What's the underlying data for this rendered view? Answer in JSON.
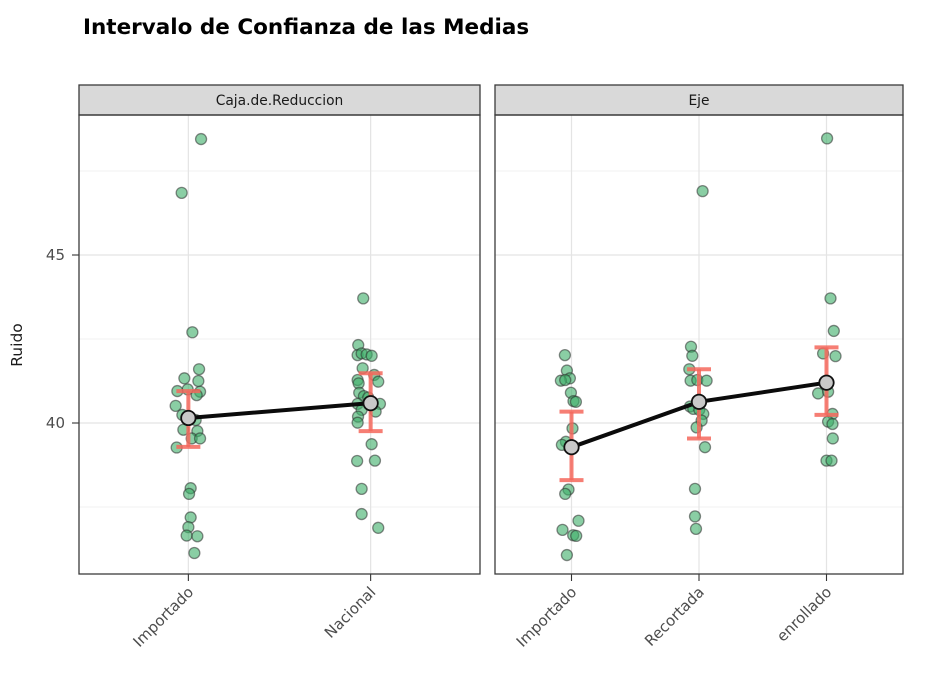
{
  "title": "Intervalo de Confianza de las Medias",
  "chart_data": {
    "type": "scatter",
    "title": "Intervalo de Confianza de las Medias",
    "xlabel": "",
    "ylabel": "Ruido",
    "legend": "none",
    "y_axis": {
      "major_ticks": [
        40,
        45
      ],
      "major_tick_labels": [
        "40",
        "45"
      ],
      "minor_ticks": [
        37.5,
        42.5,
        47.5
      ],
      "domain": [
        35.5,
        49.2
      ],
      "grid": true
    },
    "facets": [
      {
        "label": "Caja.de.Reduccion",
        "groups": [
          {
            "category": "Importado",
            "mean": 40.15,
            "ci_low": 39.29,
            "ci_high": 40.95,
            "points": [
              [
                12.7,
                48.45
              ],
              [
                -6.7,
                46.85
              ],
              [
                4,
                42.7
              ],
              [
                10.7,
                41.6
              ],
              [
                -4,
                41.33
              ],
              [
                10,
                41.25
              ],
              [
                -0.7,
                41.0
              ],
              [
                -11,
                40.95
              ],
              [
                11.7,
                40.93
              ],
              [
                8.3,
                40.83
              ],
              [
                -12.7,
                40.51
              ],
              [
                -6,
                40.24
              ],
              [
                7.3,
                40.09
              ],
              [
                -5,
                39.8
              ],
              [
                9,
                39.76
              ],
              [
                3.3,
                39.54
              ],
              [
                11.7,
                39.54
              ],
              [
                -11.7,
                39.27
              ],
              [
                2.3,
                38.06
              ],
              [
                0.7,
                37.89
              ],
              [
                2.3,
                37.19
              ],
              [
                0,
                36.9
              ],
              [
                -1.7,
                36.65
              ],
              [
                9,
                36.63
              ],
              [
                6,
                36.13
              ]
            ]
          },
          {
            "category": "Nacional",
            "mean": 40.59,
            "ci_low": 39.76,
            "ci_high": 41.48,
            "points": [
              [
                -7.4,
                43.71
              ],
              [
                -12.4,
                42.32
              ],
              [
                -13,
                42.02
              ],
              [
                -9,
                42.07
              ],
              [
                -4,
                42.04
              ],
              [
                1,
                42.0
              ],
              [
                -8,
                41.63
              ],
              [
                3.6,
                41.43
              ],
              [
                -13,
                41.28
              ],
              [
                7.6,
                41.23
              ],
              [
                -12,
                41.18
              ],
              [
                -11.4,
                40.9
              ],
              [
                -6.7,
                40.8
              ],
              [
                -2.4,
                40.76
              ],
              [
                -13,
                40.57
              ],
              [
                9.3,
                40.57
              ],
              [
                -9,
                40.39
              ],
              [
                5,
                40.34
              ],
              [
                -12.6,
                40.19
              ],
              [
                -13,
                40.01
              ],
              [
                1,
                39.37
              ],
              [
                -13.5,
                38.87
              ],
              [
                4.3,
                38.88
              ],
              [
                -9,
                38.04
              ],
              [
                -9,
                37.29
              ],
              [
                7.6,
                36.88
              ]
            ]
          }
        ]
      },
      {
        "label": "Eje",
        "groups": [
          {
            "category": "Importado",
            "mean": 39.28,
            "ci_low": 38.3,
            "ci_high": 40.34,
            "points": [
              [
                -6.6,
                42.02
              ],
              [
                -4.6,
                41.56
              ],
              [
                -1.6,
                41.33
              ],
              [
                -10.6,
                41.26
              ],
              [
                -6.3,
                41.28
              ],
              [
                -0.6,
                40.9
              ],
              [
                2,
                40.65
              ],
              [
                4.4,
                40.63
              ],
              [
                1,
                39.84
              ],
              [
                -5.6,
                39.44
              ],
              [
                -9.6,
                39.35
              ],
              [
                -3,
                38.02
              ],
              [
                -6.3,
                37.89
              ],
              [
                7,
                37.09
              ],
              [
                -9,
                36.82
              ],
              [
                1.7,
                36.66
              ],
              [
                4.7,
                36.64
              ],
              [
                -4.6,
                36.07
              ]
            ]
          },
          {
            "category": "Recortada",
            "mean": 40.63,
            "ci_low": 39.54,
            "ci_high": 41.6,
            "points": [
              [
                3.6,
                46.9
              ],
              [
                -8,
                42.27
              ],
              [
                -6.7,
                42.0
              ],
              [
                -9.7,
                41.6
              ],
              [
                -8.4,
                41.26
              ],
              [
                -1.7,
                41.28
              ],
              [
                7.6,
                41.26
              ],
              [
                -9,
                40.49
              ],
              [
                -5.7,
                40.42
              ],
              [
                0.3,
                40.39
              ],
              [
                4.3,
                40.27
              ],
              [
                2.6,
                40.07
              ],
              [
                -2.4,
                39.87
              ],
              [
                6,
                39.28
              ],
              [
                -4,
                38.04
              ],
              [
                -4,
                37.22
              ],
              [
                -3,
                36.85
              ]
            ]
          },
          {
            "category": "enrollado",
            "mean": 41.2,
            "ci_low": 40.24,
            "ci_high": 42.25,
            "points": [
              [
                0.6,
                48.47
              ],
              [
                4,
                43.71
              ],
              [
                7.3,
                42.74
              ],
              [
                -3.4,
                42.07
              ],
              [
                9,
                41.99
              ],
              [
                -8.4,
                40.88
              ],
              [
                1.6,
                40.93
              ],
              [
                6,
                40.27
              ],
              [
                1.6,
                40.04
              ],
              [
                6,
                39.97
              ],
              [
                6.3,
                39.54
              ],
              [
                0,
                38.88
              ],
              [
                5,
                38.88
              ]
            ]
          }
        ]
      }
    ],
    "colors": {
      "title": "#000000",
      "point_fill": "#3CAE68",
      "point_stroke": "#2F2F2F",
      "errorbar": "#F4675C",
      "mean_fill": "#C9C9C9",
      "mean_stroke": "#111111",
      "mean_line": "#0B0B0B",
      "strip_bg": "#D9D9D9",
      "strip_border": "#3B3B3B",
      "strip_text": "#1A1A1A",
      "panel_bg": "#FFFFFF",
      "panel_border": "#3B3B3B",
      "grid_major": "#E4E4E4",
      "grid_minor": "#F1F1F1",
      "axis_text": "#4D4D4D",
      "tick_mark": "#333333",
      "axis_title": "#1A1A1A"
    }
  }
}
